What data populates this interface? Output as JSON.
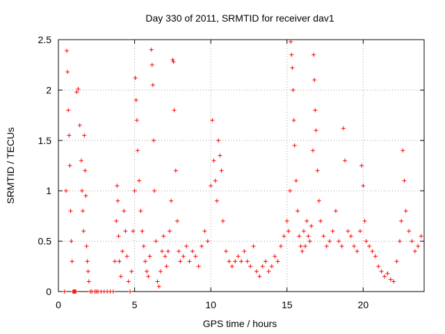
{
  "chart_data": {
    "type": "scatter",
    "title": "Day 330 of 2011, SRMTID for receiver dav1",
    "xlabel": "GPS time / hours",
    "ylabel": "SRMTID / TECUs",
    "xlim": [
      0,
      24
    ],
    "ylim": [
      0,
      2.5
    ],
    "x_ticks": [
      0,
      5,
      10,
      15,
      20
    ],
    "x_tick_labels": [
      "0",
      "5",
      "10",
      "15",
      "20"
    ],
    "y_ticks": [
      0,
      0.5,
      1,
      1.5,
      2,
      2.5
    ],
    "y_tick_labels": [
      "0",
      "0.5",
      "1",
      "1.5",
      "2",
      "2.5"
    ],
    "grid": true,
    "marker": "+",
    "color": "#ff0000",
    "series": [
      {
        "name": "SRMTID",
        "x": [
          0.4,
          0.5,
          0.55,
          0.6,
          0.65,
          0.7,
          0.75,
          0.8,
          0.85,
          0.9,
          0.95,
          1.0,
          1.05,
          1.1,
          1.15,
          1.2,
          1.3,
          1.4,
          1.5,
          1.55,
          1.6,
          1.65,
          1.7,
          1.75,
          1.8,
          1.85,
          1.9,
          1.95,
          2.0,
          2.1,
          2.2,
          2.4,
          2.5,
          2.6,
          2.8,
          3.0,
          3.2,
          3.4,
          3.6,
          3.7,
          3.8,
          3.85,
          3.9,
          3.95,
          4.0,
          4.1,
          4.2,
          4.3,
          4.4,
          4.5,
          4.6,
          4.7,
          4.8,
          4.9,
          5.0,
          5.05,
          5.1,
          5.15,
          5.2,
          5.3,
          5.4,
          5.5,
          5.6,
          5.7,
          5.8,
          5.9,
          6.0,
          6.1,
          6.15,
          6.2,
          6.25,
          6.3,
          6.4,
          6.5,
          6.6,
          6.7,
          6.8,
          6.9,
          7.0,
          7.1,
          7.2,
          7.3,
          7.4,
          7.5,
          7.55,
          7.6,
          7.7,
          7.8,
          7.9,
          8.0,
          8.2,
          8.4,
          8.6,
          8.8,
          9.0,
          9.2,
          9.4,
          9.6,
          9.8,
          10.0,
          10.1,
          10.2,
          10.3,
          10.4,
          10.5,
          10.6,
          10.7,
          10.8,
          11.0,
          11.2,
          11.4,
          11.6,
          11.8,
          12.0,
          12.2,
          12.4,
          12.6,
          12.8,
          13.0,
          13.2,
          13.4,
          13.6,
          13.8,
          14.0,
          14.2,
          14.4,
          14.6,
          14.8,
          15.0,
          15.1,
          15.2,
          15.25,
          15.3,
          15.35,
          15.4,
          15.45,
          15.5,
          15.6,
          15.7,
          15.8,
          15.9,
          16.0,
          16.1,
          16.2,
          16.3,
          16.4,
          16.5,
          16.6,
          16.7,
          16.75,
          16.8,
          16.85,
          16.9,
          17.0,
          17.1,
          17.2,
          17.4,
          17.6,
          17.8,
          18.0,
          18.2,
          18.4,
          18.6,
          18.7,
          18.8,
          19.0,
          19.2,
          19.4,
          19.6,
          19.8,
          19.9,
          20.0,
          20.1,
          20.2,
          20.4,
          20.6,
          20.8,
          21.0,
          21.2,
          21.4,
          21.6,
          21.8,
          22.0,
          22.2,
          22.4,
          22.5,
          22.6,
          22.7,
          22.8,
          23.0,
          23.2,
          23.4,
          23.6,
          23.8
        ],
        "y": [
          0.0,
          1.0,
          2.39,
          2.18,
          1.8,
          1.55,
          1.25,
          0.8,
          0.5,
          0.3,
          0.0,
          0.0,
          0.0,
          0.0,
          0.0,
          1.98,
          2.01,
          1.65,
          1.3,
          1.0,
          0.8,
          0.6,
          1.55,
          1.2,
          0.95,
          0.45,
          0.3,
          0.2,
          0.1,
          0.0,
          0.0,
          0.0,
          0.0,
          0.0,
          0.0,
          0.0,
          0.0,
          0.0,
          0.0,
          0.3,
          0.7,
          1.05,
          0.9,
          0.55,
          0.3,
          0.15,
          0.4,
          0.8,
          0.6,
          0.35,
          0.1,
          0.0,
          0.2,
          0.6,
          1.0,
          2.12,
          1.9,
          1.7,
          1.4,
          1.1,
          0.8,
          0.6,
          0.45,
          0.3,
          0.2,
          0.15,
          0.35,
          2.4,
          2.25,
          2.05,
          1.5,
          1.0,
          0.5,
          0.1,
          0.05,
          0.2,
          0.4,
          0.55,
          0.35,
          0.25,
          0.4,
          0.6,
          0.9,
          2.3,
          2.28,
          1.8,
          1.2,
          0.7,
          0.4,
          0.3,
          0.35,
          0.45,
          0.3,
          0.4,
          0.35,
          0.25,
          0.45,
          0.6,
          0.5,
          1.05,
          1.7,
          1.3,
          1.1,
          0.9,
          1.5,
          1.35,
          1.2,
          0.7,
          0.4,
          0.3,
          0.25,
          0.3,
          0.35,
          0.3,
          0.4,
          0.3,
          0.25,
          0.45,
          0.2,
          0.15,
          0.25,
          0.3,
          0.2,
          0.25,
          0.35,
          0.3,
          0.45,
          0.55,
          0.7,
          0.6,
          1.0,
          2.48,
          2.35,
          2.22,
          2.0,
          1.7,
          1.45,
          1.1,
          0.8,
          0.55,
          0.45,
          0.4,
          0.6,
          0.45,
          0.7,
          0.55,
          0.5,
          0.65,
          1.4,
          2.35,
          2.1,
          1.8,
          1.6,
          1.2,
          0.9,
          0.7,
          0.55,
          0.45,
          0.5,
          0.6,
          0.8,
          0.5,
          0.45,
          1.62,
          1.3,
          0.6,
          0.55,
          0.45,
          0.4,
          0.6,
          1.25,
          1.05,
          0.7,
          0.5,
          0.45,
          0.4,
          0.35,
          0.25,
          0.2,
          0.15,
          0.18,
          0.12,
          0.1,
          0.3,
          0.5,
          0.7,
          1.4,
          1.1,
          0.8,
          0.6,
          0.5,
          0.4,
          0.45,
          0.55
        ]
      }
    ]
  }
}
